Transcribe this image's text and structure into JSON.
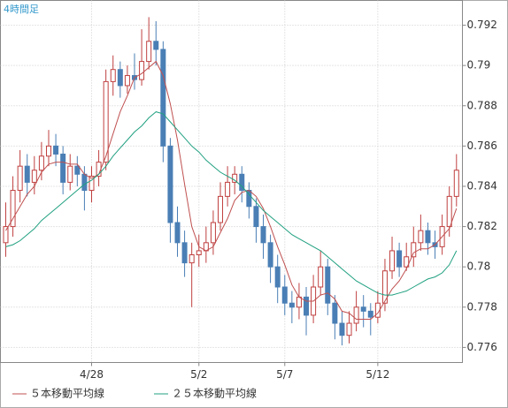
{
  "chart_data": {
    "type": "candlestick",
    "title": "4時間足",
    "xlim": [
      -0.74,
      63.83
    ],
    "xticks": [
      {
        "value": 12,
        "label": "4/28"
      },
      {
        "value": 27,
        "label": "5/2"
      },
      {
        "value": 39,
        "label": "5/7"
      },
      {
        "value": 52,
        "label": "5/12"
      }
    ],
    "ylim": [
      0.77525,
      0.79323
    ],
    "yticks": [
      0.776,
      0.778,
      0.78,
      0.782,
      0.784,
      0.786,
      0.788,
      0.79,
      0.792
    ],
    "grid": true,
    "up_color": "#c04040",
    "down_color": "#4a7fb5",
    "open": [
      0.7812,
      0.782,
      0.7838,
      0.785,
      0.7842,
      0.7848,
      0.7855,
      0.786,
      0.7856,
      0.7842,
      0.785,
      0.7846,
      0.7838,
      0.7845,
      0.7852,
      0.7892,
      0.7898,
      0.789,
      0.7895,
      0.7893,
      0.7902,
      0.7912,
      0.7908,
      0.786,
      0.7822,
      0.7812,
      0.7802,
      0.7806,
      0.7808,
      0.7812,
      0.7822,
      0.7835,
      0.7842,
      0.7846,
      0.7838,
      0.783,
      0.782,
      0.7812,
      0.78,
      0.779,
      0.7782,
      0.778,
      0.7785,
      0.7776,
      0.779,
      0.78,
      0.7782,
      0.7772,
      0.7766,
      0.7772,
      0.778,
      0.7778,
      0.7775,
      0.7782,
      0.7798,
      0.7808,
      0.78,
      0.7805,
      0.7812,
      0.7818,
      0.7812,
      0.781,
      0.782,
      0.7835
    ],
    "high": [
      0.7832,
      0.7845,
      0.7858,
      0.7856,
      0.7855,
      0.7862,
      0.7868,
      0.7866,
      0.786,
      0.7856,
      0.7855,
      0.785,
      0.785,
      0.7858,
      0.7898,
      0.7905,
      0.7902,
      0.79,
      0.7906,
      0.7918,
      0.7924,
      0.7922,
      0.7912,
      0.7864,
      0.783,
      0.7818,
      0.7812,
      0.7816,
      0.782,
      0.7828,
      0.7842,
      0.785,
      0.785,
      0.785,
      0.7842,
      0.7834,
      0.7826,
      0.7816,
      0.7806,
      0.7796,
      0.7788,
      0.7792,
      0.779,
      0.7796,
      0.7808,
      0.7804,
      0.7786,
      0.7778,
      0.7778,
      0.7788,
      0.7786,
      0.7782,
      0.7788,
      0.7804,
      0.7815,
      0.7812,
      0.7812,
      0.782,
      0.7826,
      0.7822,
      0.7818,
      0.7826,
      0.784,
      0.7856
    ],
    "low": [
      0.7805,
      0.7815,
      0.7832,
      0.7835,
      0.7836,
      0.7843,
      0.785,
      0.785,
      0.7836,
      0.7838,
      0.784,
      0.7828,
      0.7832,
      0.784,
      0.7848,
      0.7885,
      0.7884,
      0.7886,
      0.7888,
      0.789,
      0.7898,
      0.79,
      0.7852,
      0.7812,
      0.7805,
      0.7795,
      0.778,
      0.78,
      0.7802,
      0.7806,
      0.7818,
      0.783,
      0.7836,
      0.7832,
      0.7824,
      0.7812,
      0.7804,
      0.7792,
      0.7782,
      0.7776,
      0.7772,
      0.7774,
      0.7766,
      0.7772,
      0.7786,
      0.7776,
      0.7764,
      0.7761,
      0.7762,
      0.7768,
      0.777,
      0.7766,
      0.7772,
      0.7778,
      0.7794,
      0.7795,
      0.7798,
      0.78,
      0.7808,
      0.7806,
      0.7804,
      0.7806,
      0.7815,
      0.783
    ],
    "close": [
      0.782,
      0.7838,
      0.785,
      0.7842,
      0.7848,
      0.7855,
      0.786,
      0.7856,
      0.7842,
      0.785,
      0.7846,
      0.7838,
      0.7845,
      0.7852,
      0.7892,
      0.7898,
      0.789,
      0.7895,
      0.7893,
      0.7902,
      0.7912,
      0.7908,
      0.786,
      0.7822,
      0.7812,
      0.7802,
      0.7806,
      0.7808,
      0.7812,
      0.7822,
      0.7835,
      0.7842,
      0.7846,
      0.7838,
      0.783,
      0.782,
      0.7812,
      0.78,
      0.779,
      0.7782,
      0.778,
      0.7785,
      0.7776,
      0.779,
      0.78,
      0.7782,
      0.7772,
      0.7766,
      0.7772,
      0.778,
      0.7778,
      0.7775,
      0.7782,
      0.7798,
      0.7808,
      0.78,
      0.7805,
      0.7812,
      0.7818,
      0.7812,
      0.781,
      0.782,
      0.7835,
      0.7848
    ],
    "series": [
      {
        "name": "５本移動平均線",
        "color": "#c05050",
        "values": [
          0.7818,
          0.7824,
          0.783,
          0.7836,
          0.784,
          0.7847,
          0.7851,
          0.7852,
          0.7852,
          0.7851,
          0.7851,
          0.7846,
          0.7844,
          0.7846,
          0.7855,
          0.7866,
          0.7877,
          0.7885,
          0.7894,
          0.7896,
          0.7899,
          0.7902,
          0.7895,
          0.7881,
          0.7863,
          0.7841,
          0.782,
          0.781,
          0.7808,
          0.781,
          0.7817,
          0.7824,
          0.7833,
          0.7837,
          0.7838,
          0.7835,
          0.7829,
          0.782,
          0.781,
          0.7801,
          0.7791,
          0.7785,
          0.7783,
          0.7783,
          0.7786,
          0.7787,
          0.7784,
          0.7778,
          0.7777,
          0.7774,
          0.7774,
          0.7774,
          0.7777,
          0.7783,
          0.7789,
          0.7793,
          0.7799,
          0.7807,
          0.7809,
          0.7809,
          0.7811,
          0.7815,
          0.7819,
          0.7829
        ]
      },
      {
        "name": "２５本移動平均線",
        "color": "#20a080",
        "values": [
          0.781,
          0.7811,
          0.7813,
          0.7816,
          0.7819,
          0.7823,
          0.7826,
          0.7829,
          0.7832,
          0.7835,
          0.7838,
          0.7841,
          0.7843,
          0.7846,
          0.785,
          0.7855,
          0.7859,
          0.7863,
          0.7867,
          0.787,
          0.7874,
          0.7877,
          0.7876,
          0.7872,
          0.7868,
          0.7864,
          0.786,
          0.7857,
          0.7853,
          0.785,
          0.7847,
          0.7845,
          0.7843,
          0.784,
          0.7836,
          0.7832,
          0.7828,
          0.7825,
          0.7822,
          0.7819,
          0.7816,
          0.7814,
          0.7812,
          0.781,
          0.7808,
          0.7805,
          0.7802,
          0.7799,
          0.7796,
          0.7793,
          0.7791,
          0.7789,
          0.7787,
          0.7786,
          0.7786,
          0.7787,
          0.7788,
          0.779,
          0.7792,
          0.7794,
          0.7795,
          0.7797,
          0.7801,
          0.7808
        ]
      }
    ]
  }
}
